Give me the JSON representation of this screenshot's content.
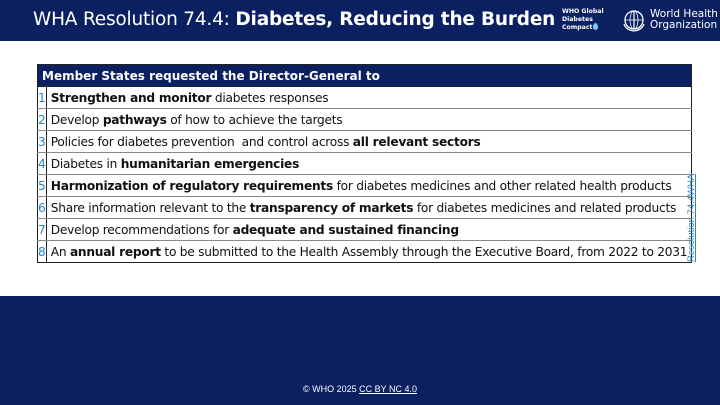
{
  "header": {
    "title_prefix": "WHA Resolution 74.4: ",
    "title_bold": "Diabetes, Reducing the Burden",
    "compact_logo": {
      "line1": "WHO Global",
      "line2": "Diabetes",
      "line3": "Compact",
      "icon": "water-drop-icon"
    },
    "who_logo": {
      "line1": "World Health",
      "line2": "Organization",
      "icon": "who-emblem-icon"
    }
  },
  "table": {
    "header": "Member States requested the Director-General to",
    "rows": [
      {
        "num": "1",
        "parts": [
          {
            "b": true,
            "t": "Strengthen and monitor"
          },
          {
            "b": false,
            "t": " diabetes responses"
          }
        ]
      },
      {
        "num": "2",
        "parts": [
          {
            "b": false,
            "t": "Develop "
          },
          {
            "b": true,
            "t": "pathways"
          },
          {
            "b": false,
            "t": " of how to achieve the targets"
          }
        ]
      },
      {
        "num": "3",
        "parts": [
          {
            "b": false,
            "t": "Policies for diabetes prevention  and control across "
          },
          {
            "b": true,
            "t": "all relevant sectors"
          }
        ]
      },
      {
        "num": "4",
        "parts": [
          {
            "b": false,
            "t": "Diabetes in "
          },
          {
            "b": true,
            "t": "humanitarian emergencies"
          }
        ]
      },
      {
        "num": "5",
        "parts": [
          {
            "b": true,
            "t": "Harmonization of regulatory requirements"
          },
          {
            "b": false,
            "t": " for diabetes medicines and other related health products"
          }
        ]
      },
      {
        "num": "6",
        "parts": [
          {
            "b": false,
            "t": "Share information relevant to the "
          },
          {
            "b": true,
            "t": "transparency of markets"
          },
          {
            "b": false,
            "t": " for diabetes medicines and related products"
          }
        ]
      },
      {
        "num": "7",
        "parts": [
          {
            "b": false,
            "t": "Develop recommendations for "
          },
          {
            "b": true,
            "t": "adequate and sustained financing"
          }
        ]
      },
      {
        "num": "8",
        "parts": [
          {
            "b": false,
            "t": "An "
          },
          {
            "b": true,
            "t": "annual report"
          },
          {
            "b": false,
            "t": " to be submitted to the Health Assembly through the Executive Board, from 2022 to 2031"
          }
        ]
      }
    ]
  },
  "side_link": "Resolution 74.4WHA",
  "footer": {
    "copyright": "© WHO 2025 ",
    "license": "CC BY NC 4.0"
  },
  "colors": {
    "navy": "#0a2060",
    "accent_blue": "#2b86c6"
  }
}
